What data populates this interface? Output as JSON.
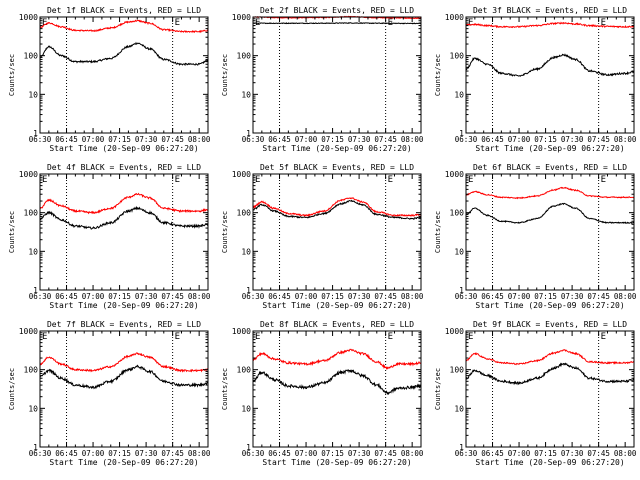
{
  "sheet": {
    "time_axis_label": "Start Time (20-Sep-09 06:27:20)",
    "y_axis_label": "Counts/sec",
    "x_tick_labels": [
      "06:30",
      "06:45",
      "07:00",
      "07:15",
      "07:30",
      "07:45",
      "08:00"
    ],
    "y_tick_labels": [
      "1",
      "10",
      "100",
      "1000"
    ],
    "event_marker_labels": [
      "E",
      "E"
    ],
    "colors": {
      "events": "#000000",
      "lld": "#ff0000",
      "axes": "#000000",
      "background": "#ffffff"
    }
  },
  "chart_data": [
    {
      "type": "line",
      "title": "Det 1f BLACK = Events, RED = LLD",
      "xlabel": "Start Time (20-Sep-09 06:27:20)",
      "ylabel": "Counts/sec",
      "x_unit": "minutes after 06:30",
      "xlim": [
        0,
        95
      ],
      "ylim": [
        1,
        1000
      ],
      "yscale": "log",
      "grid": false,
      "x_ticks": [
        0,
        15,
        30,
        45,
        60,
        75,
        90
      ],
      "y_ticks": [
        1,
        10,
        100,
        1000
      ],
      "event_marker_x": [
        0,
        75
      ],
      "dotted_vlines_x": [
        15,
        75
      ],
      "series": [
        {
          "name": "Events",
          "color": "#000000",
          "noise": 0.05,
          "x": [
            0,
            5,
            12,
            20,
            30,
            40,
            50,
            55,
            62,
            70,
            80,
            90,
            95
          ],
          "values": [
            90,
            170,
            100,
            70,
            70,
            85,
            170,
            210,
            150,
            80,
            60,
            60,
            75
          ]
        },
        {
          "name": "LLD",
          "color": "#ff0000",
          "noise": 0.04,
          "x": [
            0,
            5,
            12,
            20,
            30,
            40,
            50,
            55,
            62,
            70,
            80,
            90,
            95
          ],
          "values": [
            540,
            700,
            560,
            450,
            440,
            520,
            740,
            800,
            690,
            470,
            420,
            420,
            450
          ]
        }
      ]
    },
    {
      "type": "line",
      "title": "Det 2f BLACK = Events, RED = LLD",
      "xlabel": "Start Time (20-Sep-09 06:27:20)",
      "ylabel": "Counts/sec",
      "x_unit": "minutes after 06:30",
      "xlim": [
        0,
        95
      ],
      "ylim": [
        1,
        1000
      ],
      "yscale": "log",
      "grid": false,
      "x_ticks": [
        0,
        15,
        30,
        45,
        60,
        75,
        90
      ],
      "y_ticks": [
        1,
        10,
        100,
        1000
      ],
      "event_marker_x": [
        0,
        75
      ],
      "dotted_vlines_x": [
        15,
        75
      ],
      "series": [
        {
          "name": "Events",
          "color": "#000000",
          "noise": 0.02,
          "x": [
            0,
            20,
            40,
            55,
            70,
            95
          ],
          "values": [
            690,
            690,
            690,
            700,
            690,
            680
          ]
        },
        {
          "name": "LLD",
          "color": "#ff0000",
          "noise": 0.02,
          "x": [
            0,
            20,
            40,
            55,
            70,
            95
          ],
          "values": [
            1000,
            950,
            970,
            1020,
            960,
            930
          ]
        }
      ]
    },
    {
      "type": "line",
      "title": "Det 3f BLACK = Events, RED = LLD",
      "xlabel": "Start Time (20-Sep-09 06:27:20)",
      "ylabel": "Counts/sec",
      "x_unit": "minutes after 06:30",
      "xlim": [
        0,
        95
      ],
      "ylim": [
        1,
        1000
      ],
      "yscale": "log",
      "grid": false,
      "x_ticks": [
        0,
        15,
        30,
        45,
        60,
        75,
        90
      ],
      "y_ticks": [
        1,
        10,
        100,
        1000
      ],
      "event_marker_x": [
        0,
        75
      ],
      "dotted_vlines_x": [
        15,
        75
      ],
      "series": [
        {
          "name": "Events",
          "color": "#000000",
          "noise": 0.05,
          "x": [
            0,
            5,
            12,
            20,
            30,
            40,
            50,
            55,
            62,
            70,
            80,
            90,
            95
          ],
          "values": [
            45,
            85,
            60,
            35,
            30,
            45,
            90,
            105,
            80,
            40,
            32,
            35,
            38
          ]
        },
        {
          "name": "LLD",
          "color": "#ff0000",
          "noise": 0.04,
          "x": [
            0,
            5,
            12,
            20,
            30,
            40,
            50,
            55,
            62,
            70,
            80,
            90,
            95
          ],
          "values": [
            620,
            640,
            600,
            560,
            560,
            600,
            680,
            700,
            660,
            600,
            570,
            560,
            570
          ]
        }
      ]
    },
    {
      "type": "line",
      "title": "Det 4f BLACK = Events, RED = LLD",
      "xlabel": "Start Time (20-Sep-09 06:27:20)",
      "ylabel": "Counts/sec",
      "x_unit": "minutes after 06:30",
      "xlim": [
        0,
        95
      ],
      "ylim": [
        1,
        1000
      ],
      "yscale": "log",
      "grid": false,
      "x_ticks": [
        0,
        15,
        30,
        45,
        60,
        75,
        90
      ],
      "y_ticks": [
        1,
        10,
        100,
        1000
      ],
      "event_marker_x": [
        0,
        75
      ],
      "dotted_vlines_x": [
        15,
        75
      ],
      "series": [
        {
          "name": "Events",
          "color": "#000000",
          "noise": 0.06,
          "x": [
            0,
            5,
            12,
            20,
            30,
            40,
            50,
            55,
            62,
            70,
            80,
            90,
            95
          ],
          "values": [
            70,
            100,
            65,
            45,
            40,
            55,
            110,
            130,
            100,
            55,
            45,
            45,
            50
          ]
        },
        {
          "name": "LLD",
          "color": "#ff0000",
          "noise": 0.05,
          "x": [
            0,
            5,
            12,
            20,
            30,
            40,
            50,
            55,
            62,
            70,
            80,
            90,
            95
          ],
          "values": [
            130,
            210,
            150,
            110,
            100,
            130,
            250,
            300,
            240,
            130,
            110,
            110,
            120
          ]
        }
      ]
    },
    {
      "type": "line",
      "title": "Det 5f BLACK = Events, RED = LLD",
      "xlabel": "Start Time (20-Sep-09 06:27:20)",
      "ylabel": "Counts/sec",
      "x_unit": "minutes after 06:30",
      "xlim": [
        0,
        95
      ],
      "ylim": [
        1,
        1000
      ],
      "yscale": "log",
      "grid": false,
      "x_ticks": [
        0,
        15,
        30,
        45,
        60,
        75,
        90
      ],
      "y_ticks": [
        1,
        10,
        100,
        1000
      ],
      "event_marker_x": [
        0,
        75
      ],
      "dotted_vlines_x": [
        15,
        75
      ],
      "series": [
        {
          "name": "Events",
          "color": "#000000",
          "noise": 0.04,
          "x": [
            0,
            5,
            12,
            20,
            30,
            40,
            50,
            55,
            62,
            70,
            80,
            90,
            95
          ],
          "values": [
            120,
            160,
            110,
            80,
            75,
            95,
            170,
            200,
            160,
            90,
            75,
            70,
            75
          ]
        },
        {
          "name": "LLD",
          "color": "#ff0000",
          "noise": 0.04,
          "x": [
            0,
            5,
            12,
            20,
            30,
            40,
            50,
            55,
            62,
            70,
            80,
            90,
            95
          ],
          "values": [
            140,
            190,
            130,
            95,
            85,
            110,
            210,
            240,
            190,
            105,
            85,
            85,
            90
          ]
        }
      ]
    },
    {
      "type": "line",
      "title": "Det 6f BLACK = Events, RED = LLD",
      "xlabel": "Start Time (20-Sep-09 06:27:20)",
      "ylabel": "Counts/sec",
      "x_unit": "minutes after 06:30",
      "xlim": [
        0,
        95
      ],
      "ylim": [
        1,
        1000
      ],
      "yscale": "log",
      "grid": false,
      "x_ticks": [
        0,
        15,
        30,
        45,
        60,
        75,
        90
      ],
      "y_ticks": [
        1,
        10,
        100,
        1000
      ],
      "event_marker_x": [
        0,
        75
      ],
      "dotted_vlines_x": [
        15,
        75
      ],
      "series": [
        {
          "name": "Events",
          "color": "#000000",
          "noise": 0.03,
          "x": [
            0,
            5,
            12,
            20,
            30,
            40,
            50,
            55,
            62,
            70,
            80,
            90,
            95
          ],
          "values": [
            90,
            130,
            85,
            60,
            55,
            70,
            150,
            170,
            130,
            70,
            55,
            55,
            55
          ]
        },
        {
          "name": "LLD",
          "color": "#ff0000",
          "noise": 0.03,
          "x": [
            0,
            5,
            12,
            20,
            30,
            40,
            50,
            55,
            62,
            70,
            80,
            90,
            95
          ],
          "values": [
            290,
            350,
            290,
            250,
            240,
            270,
            390,
            440,
            380,
            270,
            250,
            250,
            250
          ]
        }
      ]
    },
    {
      "type": "line",
      "title": "Det 7f BLACK = Events, RED = LLD",
      "xlabel": "Start Time (20-Sep-09 06:27:20)",
      "ylabel": "Counts/sec",
      "x_unit": "minutes after 06:30",
      "xlim": [
        0,
        95
      ],
      "ylim": [
        1,
        1000
      ],
      "yscale": "log",
      "grid": false,
      "x_ticks": [
        0,
        15,
        30,
        45,
        60,
        75,
        90
      ],
      "y_ticks": [
        1,
        10,
        100,
        1000
      ],
      "event_marker_x": [
        0,
        75
      ],
      "dotted_vlines_x": [
        15,
        75
      ],
      "series": [
        {
          "name": "Events",
          "color": "#000000",
          "noise": 0.07,
          "x": [
            0,
            5,
            12,
            20,
            30,
            40,
            50,
            55,
            62,
            70,
            80,
            90,
            95
          ],
          "values": [
            65,
            95,
            60,
            40,
            35,
            50,
            100,
            120,
            90,
            50,
            40,
            40,
            45
          ]
        },
        {
          "name": "LLD",
          "color": "#ff0000",
          "noise": 0.05,
          "x": [
            0,
            5,
            12,
            20,
            30,
            40,
            50,
            55,
            62,
            70,
            80,
            90,
            95
          ],
          "values": [
            140,
            210,
            140,
            100,
            95,
            120,
            220,
            260,
            210,
            120,
            95,
            95,
            100
          ]
        }
      ]
    },
    {
      "type": "line",
      "title": "Det 8f BLACK = Events, RED = LLD",
      "xlabel": "Start Time (20-Sep-09 06:27:20)",
      "ylabel": "Counts/sec",
      "x_unit": "minutes after 06:30",
      "xlim": [
        0,
        95
      ],
      "ylim": [
        1,
        1000
      ],
      "yscale": "log",
      "grid": false,
      "x_ticks": [
        0,
        15,
        30,
        45,
        60,
        75,
        90
      ],
      "y_ticks": [
        1,
        10,
        100,
        1000
      ],
      "event_marker_x": [
        0,
        75
      ],
      "dotted_vlines_x": [
        15,
        75
      ],
      "series": [
        {
          "name": "Events",
          "color": "#000000",
          "noise": 0.08,
          "x": [
            0,
            5,
            12,
            20,
            30,
            40,
            50,
            55,
            62,
            70,
            76,
            82,
            90,
            95
          ],
          "values": [
            50,
            85,
            55,
            38,
            35,
            45,
            85,
            95,
            70,
            40,
            25,
            33,
            35,
            38
          ]
        },
        {
          "name": "LLD",
          "color": "#ff0000",
          "noise": 0.06,
          "x": [
            0,
            5,
            12,
            20,
            30,
            40,
            50,
            55,
            62,
            70,
            76,
            82,
            90,
            95
          ],
          "values": [
            180,
            260,
            190,
            150,
            140,
            170,
            280,
            320,
            260,
            160,
            110,
            140,
            140,
            150
          ]
        }
      ]
    },
    {
      "type": "line",
      "title": "Det 9f BLACK = Events, RED = LLD",
      "xlabel": "Start Time (20-Sep-09 06:27:20)",
      "ylabel": "Counts/sec",
      "x_unit": "minutes after 06:30",
      "xlim": [
        0,
        95
      ],
      "ylim": [
        1,
        1000
      ],
      "yscale": "log",
      "grid": false,
      "x_ticks": [
        0,
        15,
        30,
        45,
        60,
        75,
        90
      ],
      "y_ticks": [
        1,
        10,
        100,
        1000
      ],
      "event_marker_x": [
        0,
        75
      ],
      "dotted_vlines_x": [
        15,
        75
      ],
      "series": [
        {
          "name": "Events",
          "color": "#000000",
          "noise": 0.06,
          "x": [
            0,
            5,
            12,
            20,
            30,
            40,
            50,
            55,
            62,
            70,
            80,
            90,
            95
          ],
          "values": [
            60,
            95,
            70,
            50,
            45,
            60,
            110,
            140,
            110,
            60,
            50,
            50,
            55
          ]
        },
        {
          "name": "LLD",
          "color": "#ff0000",
          "noise": 0.04,
          "x": [
            0,
            5,
            12,
            20,
            30,
            40,
            50,
            55,
            62,
            70,
            80,
            90,
            95
          ],
          "values": [
            170,
            260,
            190,
            150,
            140,
            170,
            270,
            320,
            260,
            160,
            150,
            150,
            160
          ]
        }
      ]
    }
  ]
}
